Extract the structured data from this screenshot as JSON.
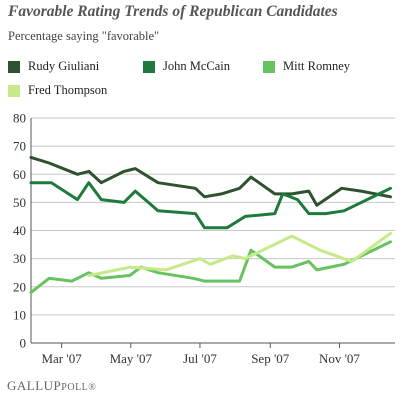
{
  "header": {
    "title": "Favorable Rating Trends of Republican Candidates",
    "subtitle": "Percentage saying \"favorable\""
  },
  "footer": {
    "brand": "GALLUP",
    "brand_suffix": "POLL",
    "trademark": "®"
  },
  "chart_data": {
    "type": "line",
    "title": "Favorable Rating Trends of Republican Candidates",
    "subtitle": "Percentage saying \"favorable\"",
    "xlabel": "",
    "ylabel": "",
    "ylim": [
      0,
      80
    ],
    "yticks": [
      0,
      10,
      20,
      30,
      40,
      50,
      60,
      70,
      80
    ],
    "xlim": [
      "2007-02-02",
      "2007-12-20"
    ],
    "xticks": [
      {
        "date": "2007-03-01",
        "label": "Mar '07"
      },
      {
        "date": "2007-05-01",
        "label": "May '07"
      },
      {
        "date": "2007-07-01",
        "label": "Jul '07"
      },
      {
        "date": "2007-09-01",
        "label": "Sep '07"
      },
      {
        "date": "2007-11-01",
        "label": "Nov '07"
      }
    ],
    "grid": true,
    "legend_position": "top",
    "series": [
      {
        "name": "Rudy Giuliani",
        "color": "#2e5130",
        "points": [
          [
            "2007-02-02",
            66
          ],
          [
            "2007-02-18",
            64
          ],
          [
            "2007-03-15",
            60
          ],
          [
            "2007-03-25",
            61
          ],
          [
            "2007-04-05",
            57
          ],
          [
            "2007-04-25",
            61
          ],
          [
            "2007-05-05",
            62
          ],
          [
            "2007-05-25",
            57
          ],
          [
            "2007-06-27",
            55
          ],
          [
            "2007-07-05",
            52
          ],
          [
            "2007-07-20",
            53
          ],
          [
            "2007-08-05",
            55
          ],
          [
            "2007-08-15",
            59
          ],
          [
            "2007-09-05",
            53
          ],
          [
            "2007-09-20",
            53
          ],
          [
            "2007-10-05",
            54
          ],
          [
            "2007-10-12",
            49
          ],
          [
            "2007-11-03",
            55
          ],
          [
            "2007-11-20",
            54
          ],
          [
            "2007-12-16",
            52
          ]
        ]
      },
      {
        "name": "John McCain",
        "color": "#1d7a3c",
        "points": [
          [
            "2007-02-02",
            57
          ],
          [
            "2007-02-20",
            57
          ],
          [
            "2007-03-15",
            51
          ],
          [
            "2007-03-25",
            57
          ],
          [
            "2007-04-05",
            51
          ],
          [
            "2007-04-25",
            50
          ],
          [
            "2007-05-05",
            54
          ],
          [
            "2007-05-25",
            47
          ],
          [
            "2007-06-27",
            46
          ],
          [
            "2007-07-05",
            41
          ],
          [
            "2007-07-25",
            41
          ],
          [
            "2007-08-10",
            45
          ],
          [
            "2007-09-05",
            46
          ],
          [
            "2007-09-12",
            53
          ],
          [
            "2007-09-25",
            51
          ],
          [
            "2007-10-05",
            46
          ],
          [
            "2007-10-20",
            46
          ],
          [
            "2007-11-05",
            47
          ],
          [
            "2007-12-16",
            55
          ]
        ]
      },
      {
        "name": "Mitt Romney",
        "color": "#66c35f",
        "points": [
          [
            "2007-02-02",
            18
          ],
          [
            "2007-02-18",
            23
          ],
          [
            "2007-03-10",
            22
          ],
          [
            "2007-03-25",
            25
          ],
          [
            "2007-04-05",
            23
          ],
          [
            "2007-04-30",
            24
          ],
          [
            "2007-05-10",
            27
          ],
          [
            "2007-05-25",
            25
          ],
          [
            "2007-06-25",
            23
          ],
          [
            "2007-07-05",
            22
          ],
          [
            "2007-08-05",
            22
          ],
          [
            "2007-08-15",
            33
          ],
          [
            "2007-09-05",
            27
          ],
          [
            "2007-09-20",
            27
          ],
          [
            "2007-10-05",
            29
          ],
          [
            "2007-10-12",
            26
          ],
          [
            "2007-11-05",
            28
          ],
          [
            "2007-12-16",
            36
          ]
        ]
      },
      {
        "name": "Fred Thompson",
        "color": "#c6ea8a",
        "points": [
          [
            "2007-03-25",
            24
          ],
          [
            "2007-05-01",
            27
          ],
          [
            "2007-06-01",
            26
          ],
          [
            "2007-07-01",
            30
          ],
          [
            "2007-07-10",
            28
          ],
          [
            "2007-07-30",
            31
          ],
          [
            "2007-08-10",
            30
          ],
          [
            "2007-09-20",
            38
          ],
          [
            "2007-10-15",
            33
          ],
          [
            "2007-11-12",
            29
          ],
          [
            "2007-12-16",
            39
          ]
        ]
      }
    ]
  }
}
